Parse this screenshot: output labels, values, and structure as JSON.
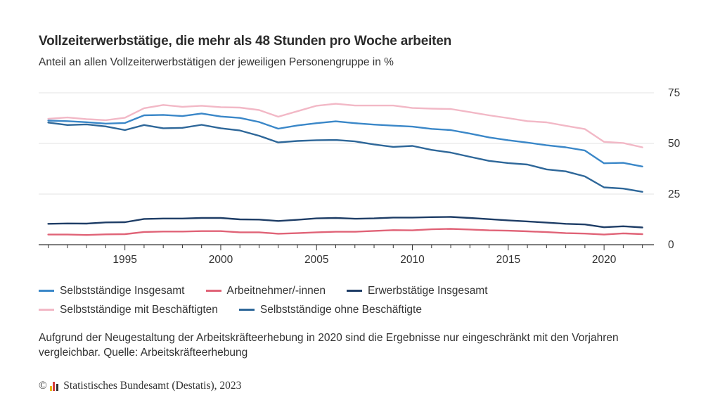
{
  "title": "Vollzeiterwerbstätige, die mehr als 48 Stunden pro Woche arbeiten",
  "subtitle": "Anteil an allen Vollzeiterwerbstätigen der jeweiligen Personengruppe in %",
  "note": "Aufgrund der Neugestaltung der Arbeitskräfteerhebung in 2020 sind die Ergebnisse nur eingeschränkt mit den Vorjahren vergleichbar. Quelle: Arbeitskräfteerhebung",
  "footer": {
    "copyright_symbol": "©",
    "text": "Statistisches Bundesamt (Destatis), 2023",
    "logo_colors": [
      "#e6b800",
      "#d33c3c",
      "#333333"
    ]
  },
  "chart_data": {
    "type": "line",
    "x": [
      1991,
      1992,
      1993,
      1994,
      1995,
      1996,
      1997,
      1998,
      1999,
      2000,
      2001,
      2002,
      2003,
      2004,
      2005,
      2006,
      2007,
      2008,
      2009,
      2010,
      2011,
      2012,
      2013,
      2014,
      2015,
      2016,
      2017,
      2018,
      2019,
      2020,
      2021,
      2022
    ],
    "x_ticks": [
      1995,
      2000,
      2005,
      2010,
      2015,
      2020
    ],
    "y_ticks": [
      0,
      25,
      50,
      75
    ],
    "ylim": [
      0,
      75
    ],
    "grid": true,
    "legend_position": "bottom",
    "series": [
      {
        "name": "Selbstständige Insgesamt",
        "color": "#3a87c8",
        "values": [
          61.3,
          61.0,
          60.5,
          59.8,
          60.1,
          63.9,
          64.1,
          63.5,
          64.8,
          63.3,
          62.6,
          60.6,
          57.3,
          58.9,
          60.0,
          60.9,
          60.0,
          59.3,
          58.8,
          58.3,
          57.2,
          56.6,
          54.9,
          53.0,
          51.6,
          50.4,
          49.1,
          48.1,
          46.5,
          40.2,
          40.4,
          38.6
        ]
      },
      {
        "name": "Arbeitnehmer/-innen",
        "color": "#e06377",
        "values": [
          5.0,
          5.0,
          4.8,
          5.1,
          5.2,
          6.3,
          6.5,
          6.5,
          6.7,
          6.7,
          6.1,
          6.1,
          5.4,
          5.7,
          6.1,
          6.4,
          6.4,
          6.8,
          7.2,
          7.1,
          7.6,
          7.8,
          7.5,
          7.1,
          6.9,
          6.6,
          6.2,
          5.7,
          5.5,
          5.0,
          5.6,
          5.2
        ]
      },
      {
        "name": "Erwerbstätige Insgesamt",
        "color": "#1e3d66",
        "values": [
          10.3,
          10.5,
          10.4,
          11.0,
          11.1,
          12.7,
          12.9,
          12.9,
          13.2,
          13.2,
          12.5,
          12.4,
          11.7,
          12.3,
          13.0,
          13.2,
          12.8,
          13.0,
          13.4,
          13.4,
          13.6,
          13.7,
          13.2,
          12.6,
          12.0,
          11.5,
          10.9,
          10.3,
          10.0,
          8.6,
          9.1,
          8.5
        ]
      },
      {
        "name": "Selbstständige mit Beschäftigten",
        "color": "#f2b8c6",
        "values": [
          62.2,
          62.8,
          62.0,
          61.5,
          62.7,
          67.4,
          69.0,
          68.1,
          68.6,
          67.9,
          67.7,
          66.5,
          63.2,
          65.9,
          68.6,
          69.6,
          68.7,
          68.7,
          68.7,
          67.5,
          67.2,
          67.0,
          65.5,
          63.9,
          62.5,
          61.0,
          60.4,
          58.7,
          57.1,
          50.8,
          50.2,
          48.1
        ]
      },
      {
        "name": "Selbstständige ohne Beschäftigte",
        "color": "#2e6799",
        "values": [
          60.3,
          59.1,
          59.4,
          58.4,
          56.6,
          59.1,
          57.5,
          57.7,
          59.2,
          57.5,
          56.4,
          53.8,
          50.5,
          51.2,
          51.6,
          51.7,
          51.0,
          49.5,
          48.3,
          48.8,
          46.8,
          45.5,
          43.4,
          41.4,
          40.3,
          39.6,
          37.2,
          36.2,
          33.7,
          28.3,
          27.7,
          26.1
        ]
      }
    ]
  }
}
